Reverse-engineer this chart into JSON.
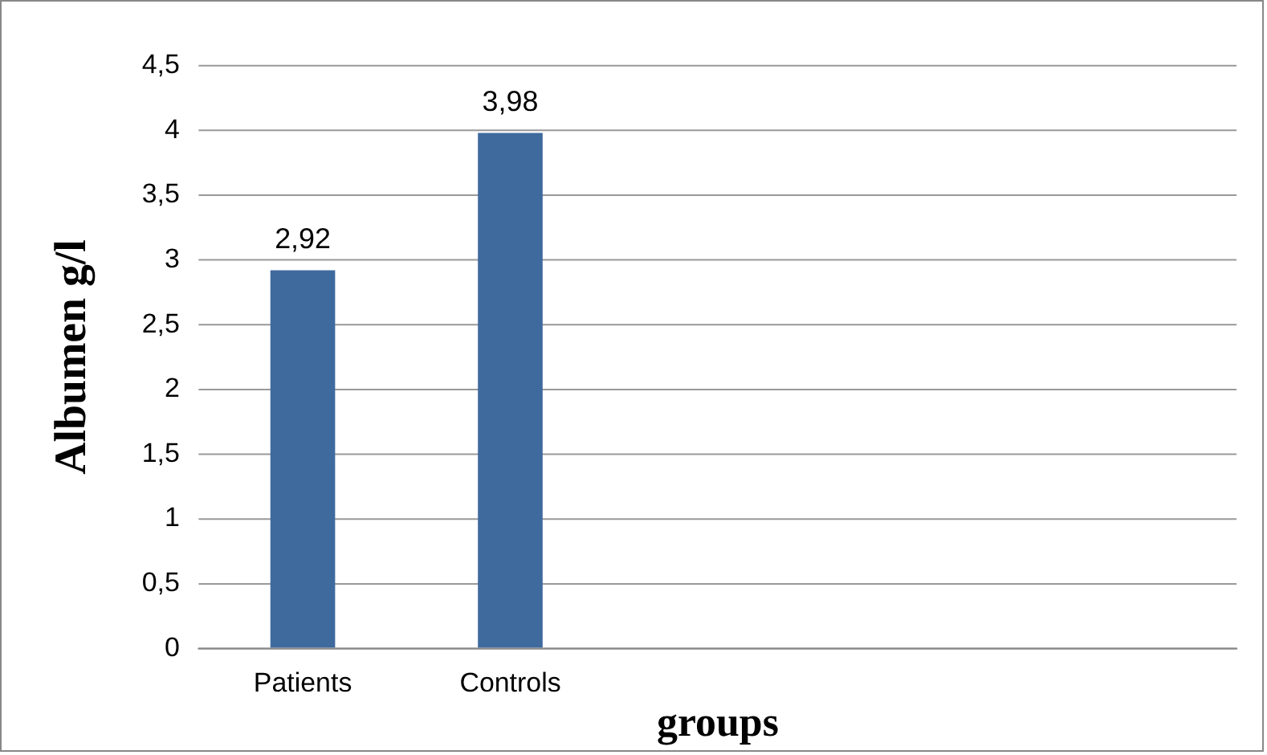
{
  "chart_data": {
    "type": "bar",
    "xlabel": "groups",
    "ylabel": "Albumen g/l",
    "categories": [
      "Patients",
      "Controls",
      null,
      null,
      null
    ],
    "values": [
      2.92,
      3.98,
      null,
      null,
      null
    ],
    "value_labels": [
      "2,92",
      "3,98",
      null,
      null,
      null
    ],
    "color": "#3f6a9e",
    "ylim": [
      0,
      4.5
    ],
    "yticks": [
      {
        "value": 0,
        "label": "0"
      },
      {
        "value": 0.5,
        "label": "0,5"
      },
      {
        "value": 1,
        "label": "1"
      },
      {
        "value": 1.5,
        "label": "1,5"
      },
      {
        "value": 2,
        "label": "2"
      },
      {
        "value": 2.5,
        "label": "2,5"
      },
      {
        "value": 3,
        "label": "3"
      },
      {
        "value": 3.5,
        "label": "3,5"
      },
      {
        "value": 4,
        "label": "4"
      },
      {
        "value": 4.5,
        "label": "4,5"
      }
    ],
    "grid": "y",
    "legend": false
  }
}
